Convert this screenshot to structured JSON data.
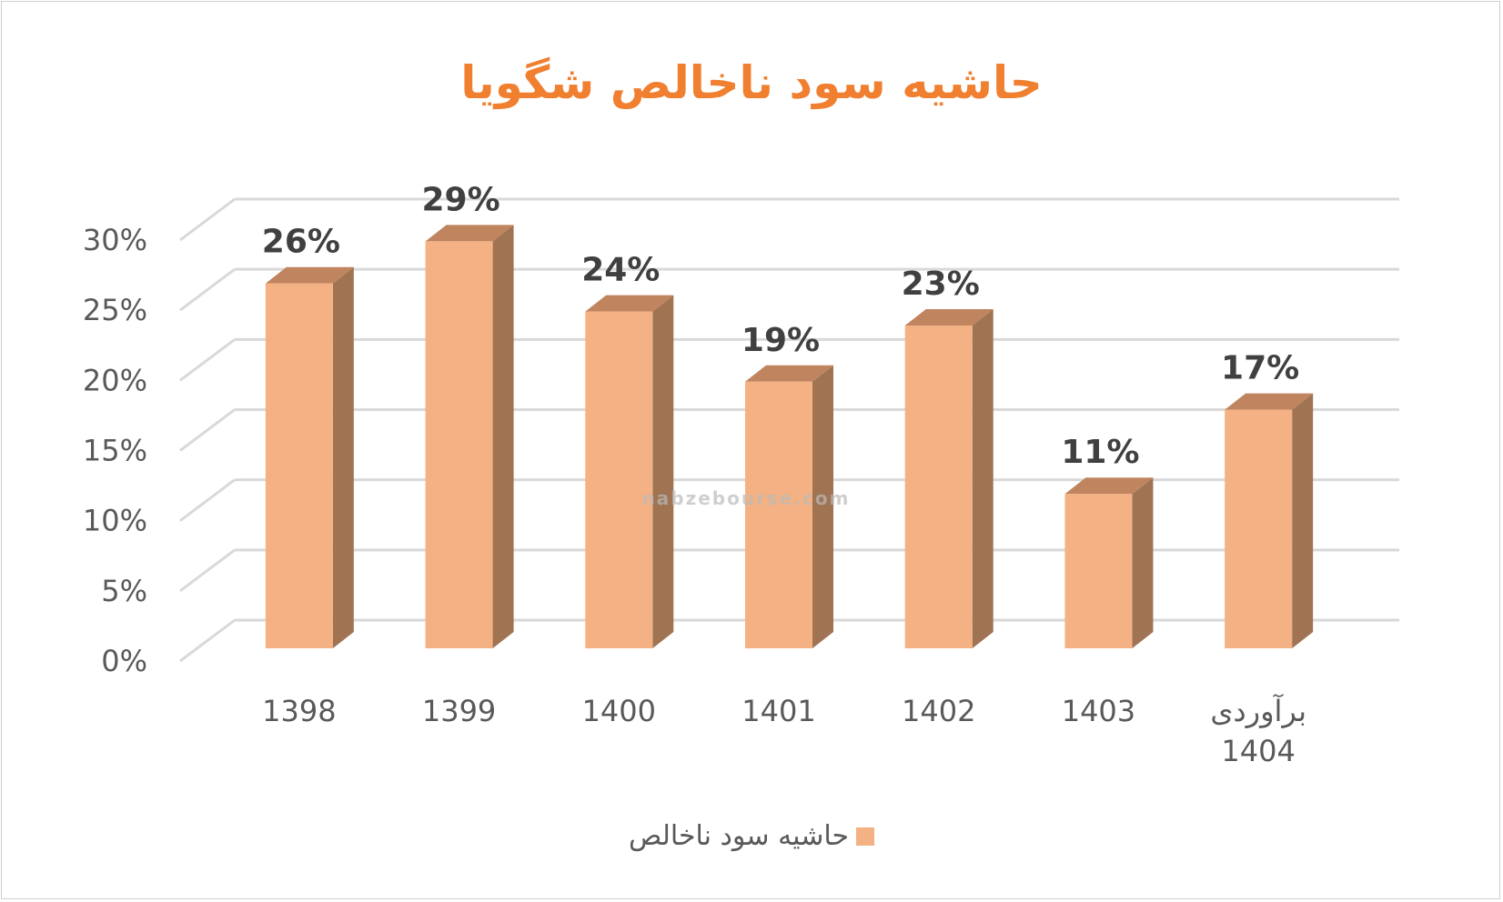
{
  "chart_data": {
    "type": "bar3d",
    "title": "حاشیه سود ناخالص شگویا",
    "title_color": "#f07f30",
    "watermark": "nabzebourse.com",
    "categories": [
      "1398",
      "1399",
      "1400",
      "1401",
      "1402",
      "1403",
      "برآوردی 1404"
    ],
    "series": [
      {
        "name": "حاشیه سود  ناخالص",
        "color": "#f4b183",
        "values": [
          26,
          29,
          24,
          19,
          23,
          11,
          17
        ],
        "value_labels": [
          "26%",
          "29%",
          "24%",
          "19%",
          "23%",
          "11%",
          "17%"
        ]
      }
    ],
    "ylim": [
      0,
      30
    ],
    "yticks": [
      {
        "value": 0,
        "label": "0%"
      },
      {
        "value": 5,
        "label": "5%"
      },
      {
        "value": 10,
        "label": "10%"
      },
      {
        "value": 15,
        "label": "15%"
      },
      {
        "value": 20,
        "label": "20%"
      },
      {
        "value": 25,
        "label": "25%"
      },
      {
        "value": 30,
        "label": "30%"
      }
    ],
    "grid": true
  }
}
